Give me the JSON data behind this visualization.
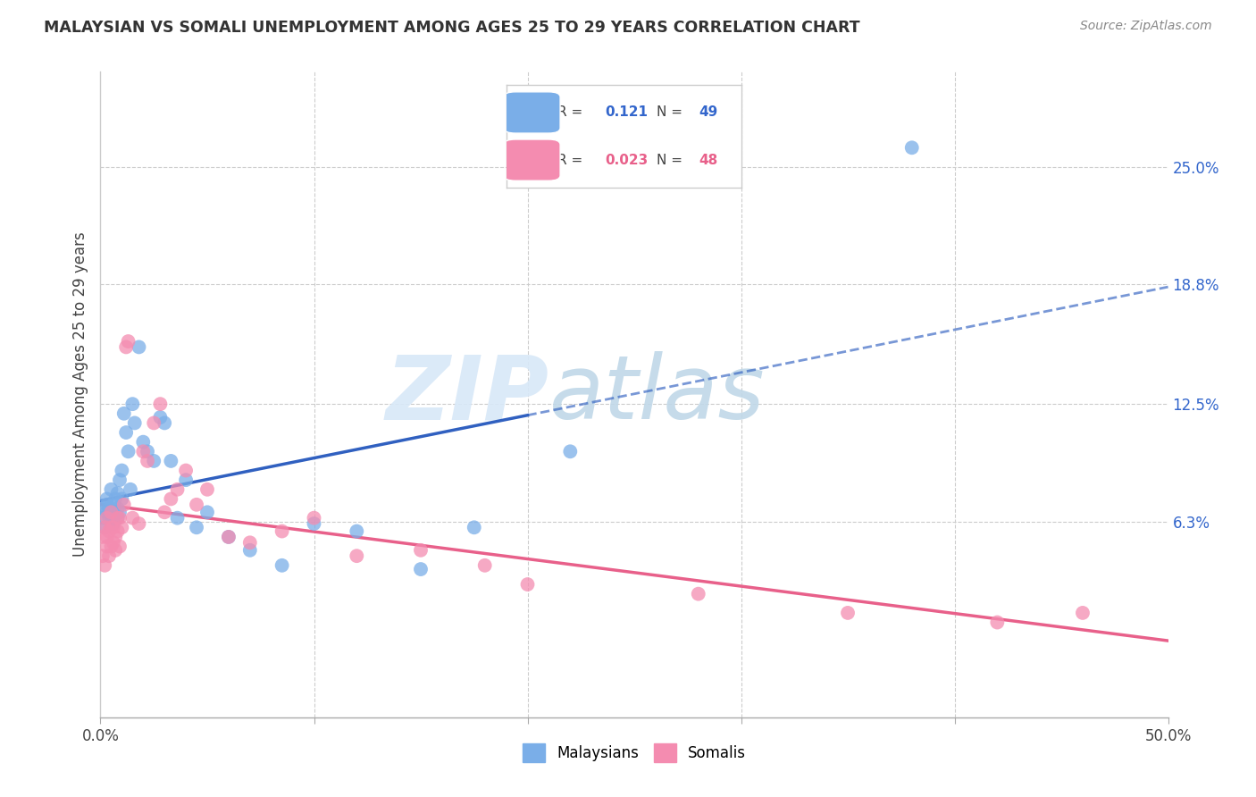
{
  "title": "MALAYSIAN VS SOMALI UNEMPLOYMENT AMONG AGES 25 TO 29 YEARS CORRELATION CHART",
  "source": "Source: ZipAtlas.com",
  "ylabel": "Unemployment Among Ages 25 to 29 years",
  "xlim": [
    0.0,
    0.5
  ],
  "ylim": [
    -0.04,
    0.3
  ],
  "y_ticks_right": [
    0.25,
    0.188,
    0.125,
    0.063
  ],
  "y_tick_labels_right": [
    "25.0%",
    "18.8%",
    "12.5%",
    "6.3%"
  ],
  "legend_r_blue": "0.121",
  "legend_n_blue": "49",
  "legend_r_pink": "0.023",
  "legend_n_pink": "48",
  "blue_color": "#7aaee8",
  "pink_color": "#f48cb0",
  "blue_line_color": "#3060c0",
  "pink_line_color": "#e8608a",
  "watermark_zip": "ZIP",
  "watermark_atlas": "atlas",
  "malaysian_x": [
    0.001,
    0.002,
    0.002,
    0.003,
    0.003,
    0.003,
    0.004,
    0.004,
    0.005,
    0.005,
    0.005,
    0.006,
    0.006,
    0.006,
    0.007,
    0.007,
    0.008,
    0.008,
    0.008,
    0.009,
    0.009,
    0.01,
    0.01,
    0.011,
    0.012,
    0.013,
    0.014,
    0.015,
    0.016,
    0.018,
    0.02,
    0.022,
    0.025,
    0.028,
    0.03,
    0.033,
    0.036,
    0.04,
    0.045,
    0.05,
    0.06,
    0.07,
    0.085,
    0.1,
    0.12,
    0.15,
    0.175,
    0.22,
    0.38
  ],
  "malaysian_y": [
    0.065,
    0.06,
    0.07,
    0.072,
    0.068,
    0.075,
    0.065,
    0.07,
    0.062,
    0.068,
    0.08,
    0.062,
    0.065,
    0.072,
    0.068,
    0.075,
    0.065,
    0.07,
    0.078,
    0.068,
    0.085,
    0.075,
    0.09,
    0.12,
    0.11,
    0.1,
    0.08,
    0.125,
    0.115,
    0.155,
    0.105,
    0.1,
    0.095,
    0.118,
    0.115,
    0.095,
    0.065,
    0.085,
    0.06,
    0.068,
    0.055,
    0.048,
    0.04,
    0.062,
    0.058,
    0.038,
    0.06,
    0.1,
    0.26
  ],
  "somali_x": [
    0.001,
    0.001,
    0.002,
    0.002,
    0.003,
    0.003,
    0.003,
    0.004,
    0.004,
    0.005,
    0.005,
    0.005,
    0.006,
    0.006,
    0.007,
    0.007,
    0.008,
    0.008,
    0.009,
    0.009,
    0.01,
    0.011,
    0.012,
    0.013,
    0.015,
    0.018,
    0.02,
    0.022,
    0.025,
    0.028,
    0.03,
    0.033,
    0.036,
    0.04,
    0.045,
    0.05,
    0.06,
    0.07,
    0.085,
    0.1,
    0.12,
    0.15,
    0.18,
    0.2,
    0.28,
    0.35,
    0.42,
    0.46
  ],
  "somali_y": [
    0.045,
    0.055,
    0.04,
    0.06,
    0.05,
    0.055,
    0.065,
    0.045,
    0.058,
    0.05,
    0.06,
    0.068,
    0.052,
    0.06,
    0.048,
    0.055,
    0.058,
    0.065,
    0.05,
    0.065,
    0.06,
    0.072,
    0.155,
    0.158,
    0.065,
    0.062,
    0.1,
    0.095,
    0.115,
    0.125,
    0.068,
    0.075,
    0.08,
    0.09,
    0.072,
    0.08,
    0.055,
    0.052,
    0.058,
    0.065,
    0.045,
    0.048,
    0.04,
    0.03,
    0.025,
    0.015,
    0.01,
    0.015
  ]
}
